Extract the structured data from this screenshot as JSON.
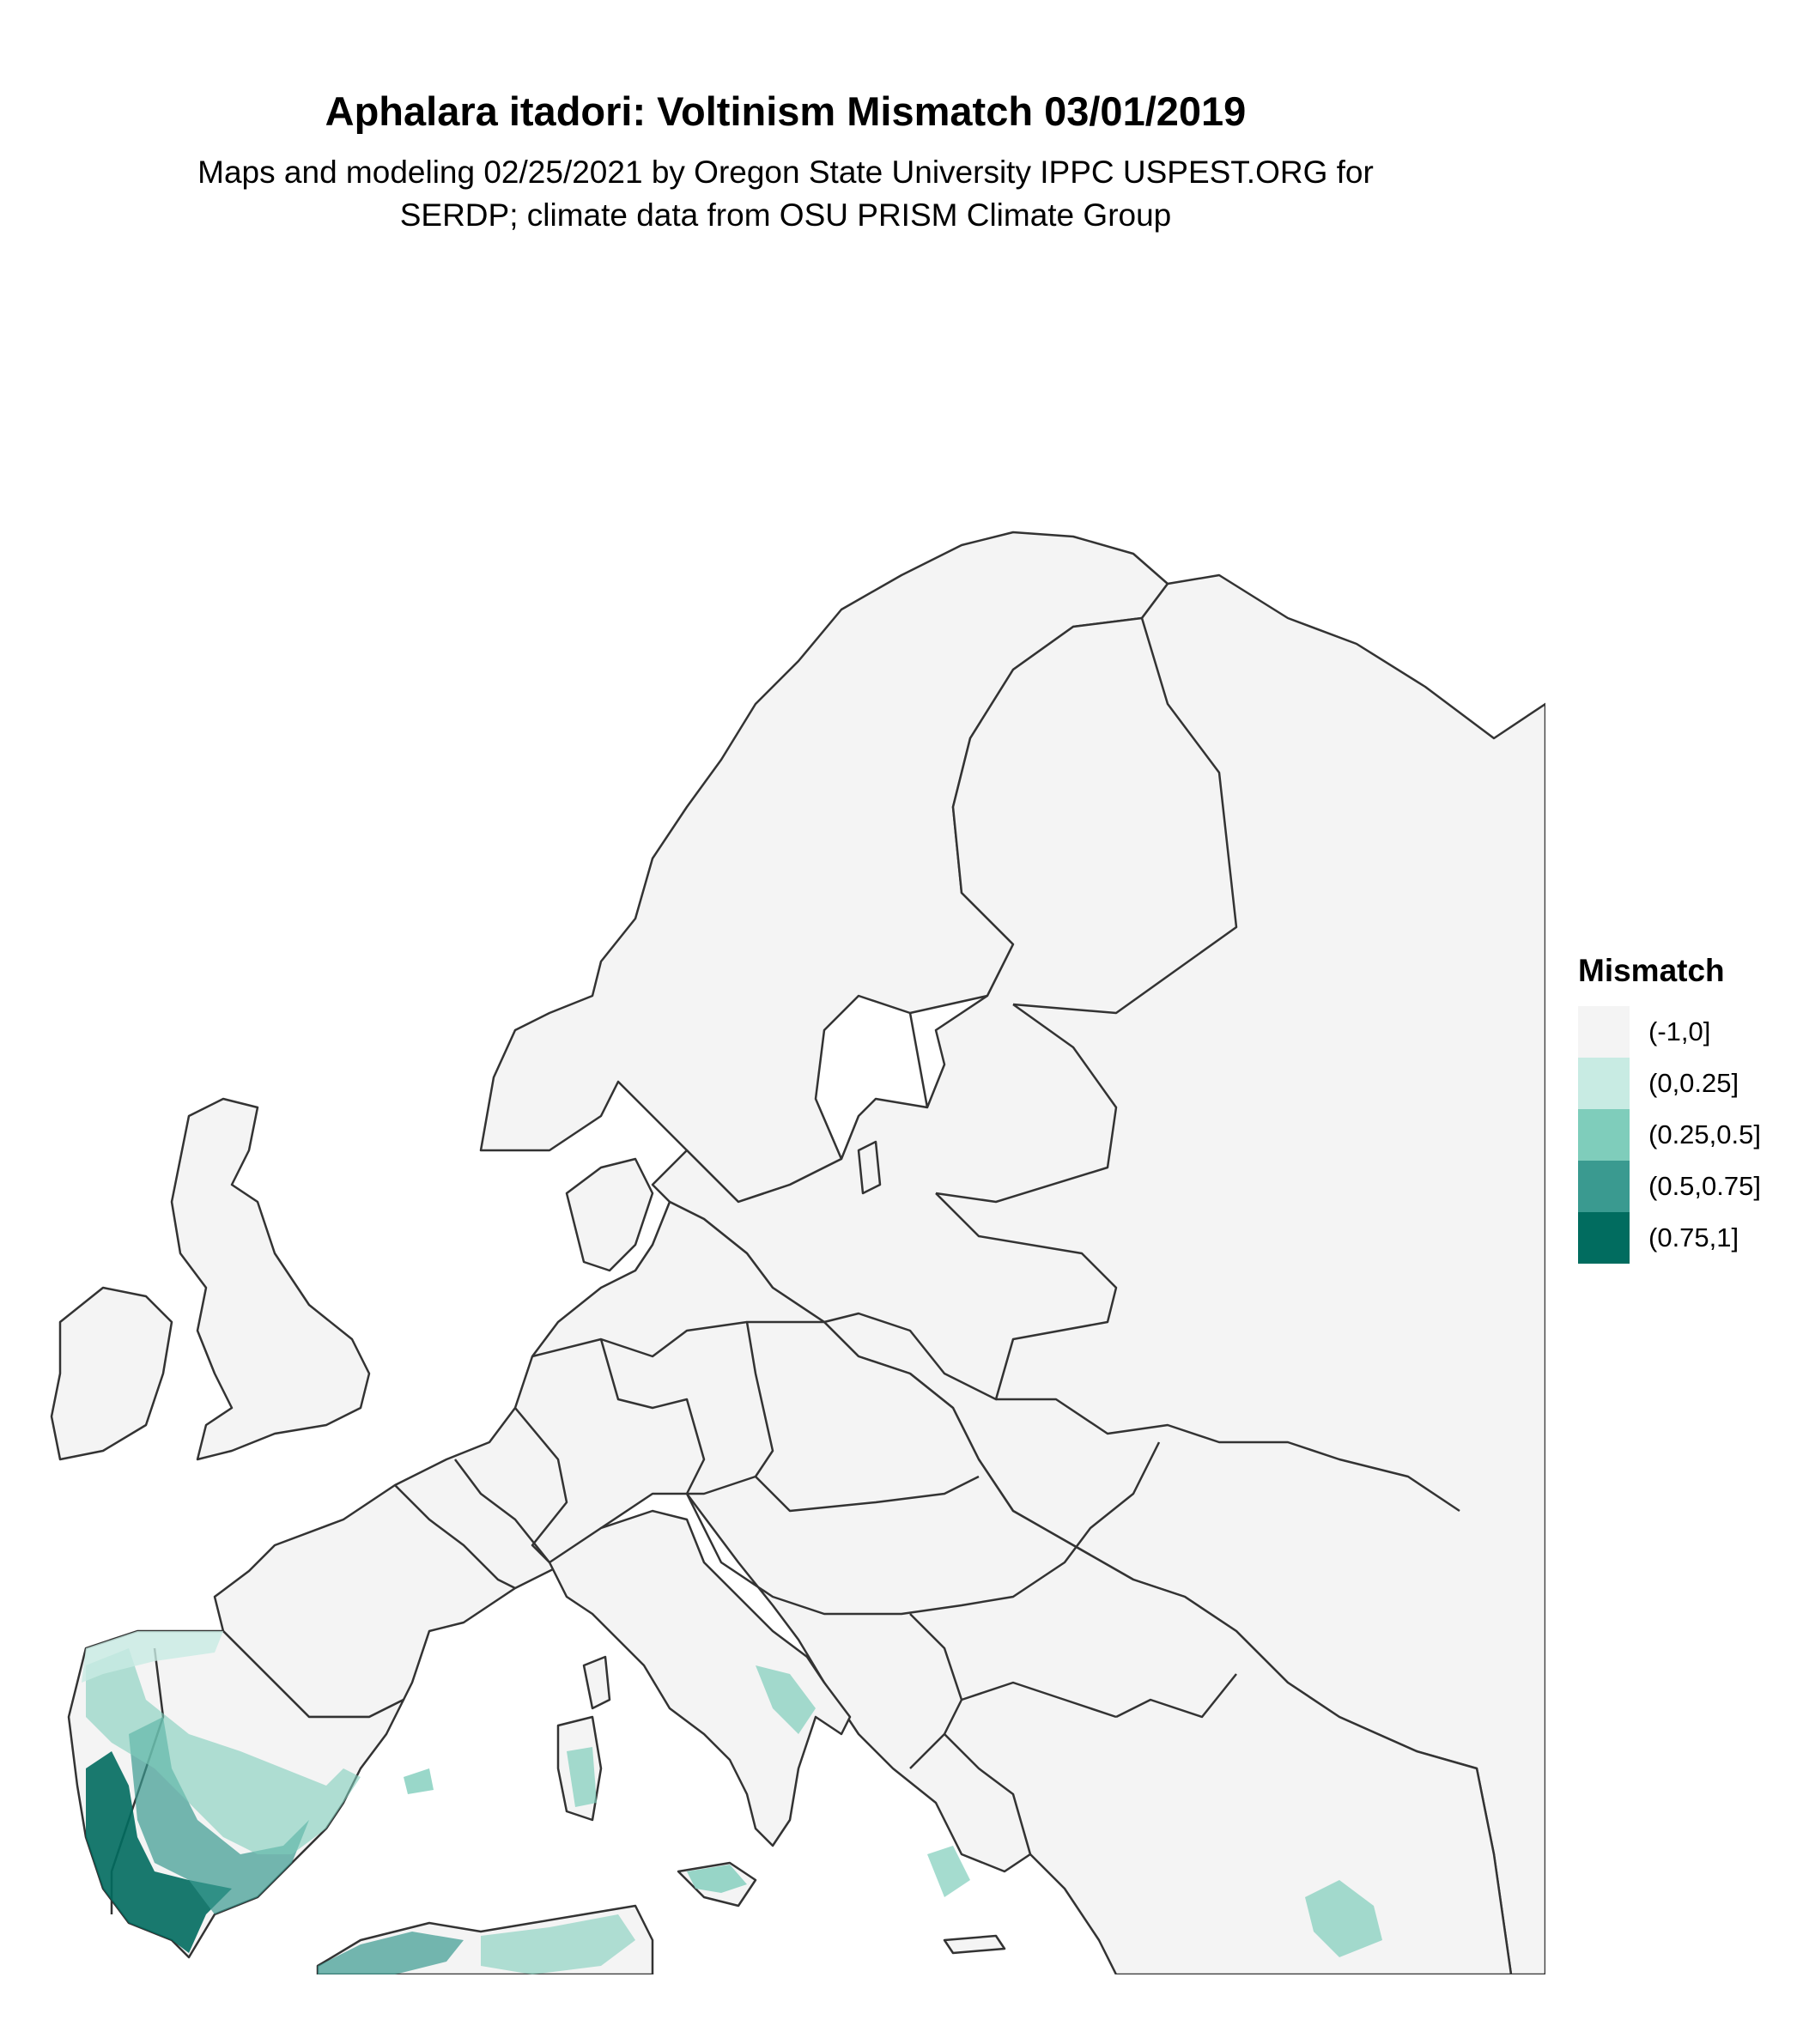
{
  "title": "Aphalara itadori: Voltinism Mismatch 03/01/2019",
  "subtitle_line1": "Maps and modeling 02/25/2021 by Oregon State University IPPC USPEST.ORG for",
  "subtitle_line2": "SERDP; climate data from OSU PRISM Climate Group",
  "legend": {
    "title": "Mismatch",
    "items": [
      {
        "label": "(-1,0]",
        "color": "#f4f4f4"
      },
      {
        "label": "(0,0.25]",
        "color": "#c8ebe3"
      },
      {
        "label": "(0.25,0.5]",
        "color": "#7fcdbb"
      },
      {
        "label": "(0.5,0.75]",
        "color": "#3a9a90"
      },
      {
        "label": "(0.75,1]",
        "color": "#016c5f"
      }
    ]
  },
  "colors": {
    "land": "#f4f4f4",
    "border": "#333333",
    "water": "#ffffff"
  }
}
